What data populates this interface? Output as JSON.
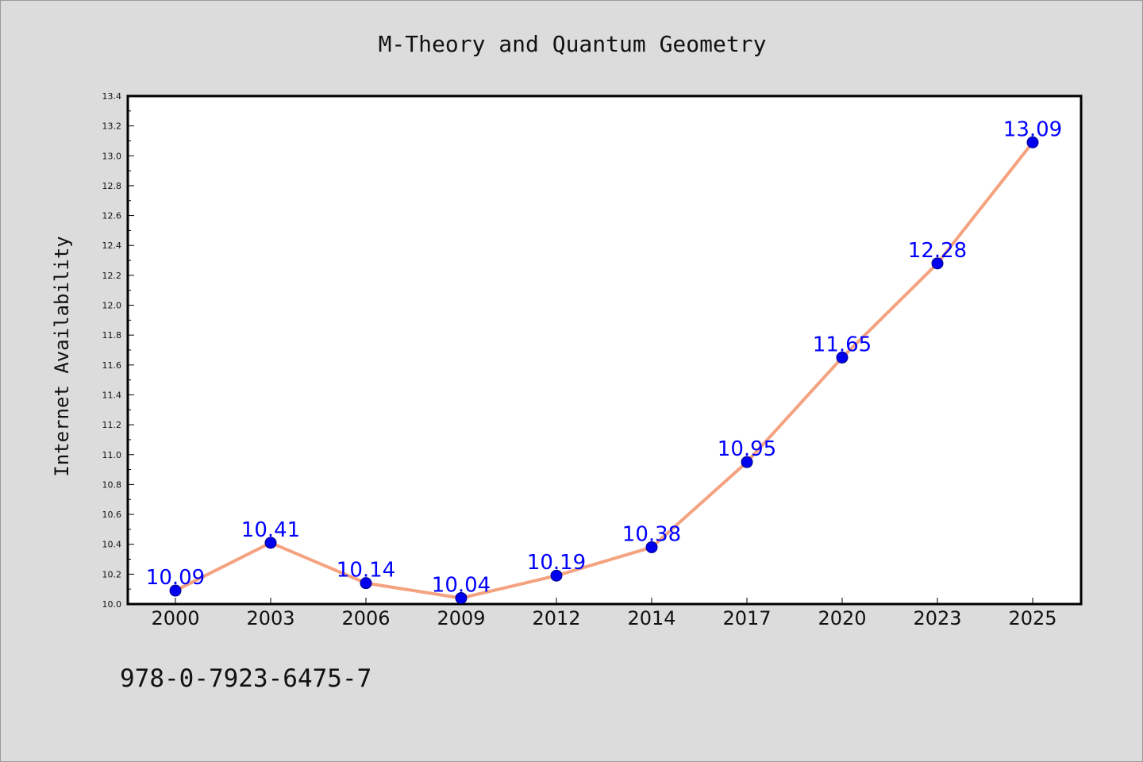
{
  "colors": {
    "background": "#dcdcdc",
    "plot_background": "#ffffff",
    "line": "#f4a27f",
    "marker": "#0000ee",
    "marker_edge": "#00008b",
    "data_label": "#0000ff",
    "text": "#111111"
  },
  "footer": {
    "isbn": "978-0-7923-6475-7"
  },
  "chart_data": {
    "type": "line",
    "title": "M-Theory and Quantum Geometry",
    "xlabel": "",
    "ylabel": "Internet Availability",
    "categories": [
      "2000",
      "2003",
      "2006",
      "2009",
      "2012",
      "2014",
      "2017",
      "2020",
      "2023",
      "2025"
    ],
    "series": [
      {
        "values": [
          10.09,
          10.41,
          10.14,
          10.04,
          10.19,
          10.38,
          10.95,
          11.65,
          12.28,
          13.09
        ],
        "data_labels": [
          "10.09",
          "10.41",
          "10.14",
          "10.04",
          "10.19",
          "10.38",
          "10.95",
          "11.65",
          "12.28",
          "13.09"
        ]
      }
    ],
    "ylim": [
      10.0,
      13.4
    ],
    "y_ticks": [
      "10.0",
      "10.2",
      "10.4",
      "10.6",
      "10.8",
      "11.0",
      "11.2",
      "11.4",
      "11.6",
      "11.8",
      "12.0",
      "12.2",
      "12.4",
      "12.6",
      "12.8",
      "13.0",
      "13.2",
      "13.4"
    ],
    "grid": false,
    "legend": "none"
  }
}
